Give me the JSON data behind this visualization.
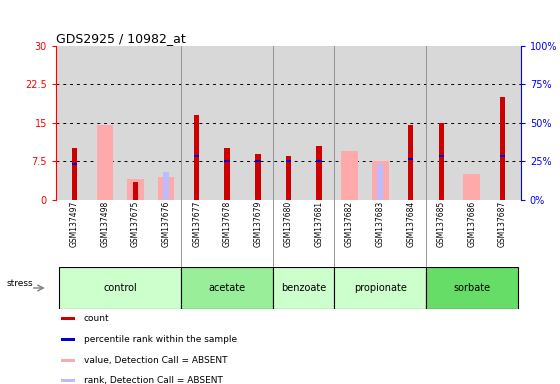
{
  "title": "GDS2925 / 10982_at",
  "samples": [
    "GSM137497",
    "GSM137498",
    "GSM137675",
    "GSM137676",
    "GSM137677",
    "GSM137678",
    "GSM137679",
    "GSM137680",
    "GSM137681",
    "GSM137682",
    "GSM137683",
    "GSM137684",
    "GSM137685",
    "GSM137686",
    "GSM137687"
  ],
  "count_bars": [
    10.0,
    0,
    3.5,
    0,
    16.5,
    10.0,
    9.0,
    8.5,
    10.5,
    0,
    0,
    14.5,
    15.0,
    0,
    20.0
  ],
  "rank_bars": [
    7.0,
    0,
    0,
    0,
    8.5,
    7.5,
    7.5,
    7.5,
    7.5,
    0,
    0,
    8.0,
    8.5,
    0,
    8.5
  ],
  "absent_value_bars": [
    0,
    14.5,
    4.0,
    4.5,
    0,
    0,
    0,
    0,
    0,
    9.5,
    7.5,
    0,
    0,
    5.0,
    0
  ],
  "absent_rank_bars": [
    0,
    0,
    0,
    5.5,
    0,
    0,
    0,
    0,
    0,
    0,
    7.0,
    0,
    0,
    0,
    0
  ],
  "ylim_left": [
    0,
    30
  ],
  "ylim_right": [
    0,
    100
  ],
  "yticks_left": [
    0,
    7.5,
    15,
    22.5,
    30
  ],
  "yticks_right": [
    0,
    25,
    50,
    75,
    100
  ],
  "ytick_labels_left": [
    "0",
    "7.5",
    "15",
    "22.5",
    "30"
  ],
  "ytick_labels_right": [
    "0%",
    "25%",
    "50%",
    "75%",
    "100%"
  ],
  "hlines": [
    7.5,
    15,
    22.5
  ],
  "bar_color_count": "#cc0000",
  "bar_color_rank": "#0000cc",
  "bar_color_absent_value": "#ffaaaa",
  "bar_color_absent_rank": "#bbbbff",
  "plot_bg": "#d8d8d8",
  "groups": [
    {
      "name": "control",
      "color": "#ccffcc",
      "start": 0,
      "end": 3
    },
    {
      "name": "acetate",
      "color": "#99ee99",
      "start": 4,
      "end": 6
    },
    {
      "name": "benzoate",
      "color": "#ccffcc",
      "start": 7,
      "end": 8
    },
    {
      "name": "propionate",
      "color": "#ccffcc",
      "start": 9,
      "end": 11
    },
    {
      "name": "sorbate",
      "color": "#66dd66",
      "start": 12,
      "end": 14
    }
  ],
  "legend_items": [
    {
      "color": "#cc0000",
      "label": "count"
    },
    {
      "color": "#0000cc",
      "label": "percentile rank within the sample"
    },
    {
      "color": "#ffaaaa",
      "label": "value, Detection Call = ABSENT"
    },
    {
      "color": "#bbbbff",
      "label": "rank, Detection Call = ABSENT"
    }
  ],
  "stress_label": "stress"
}
